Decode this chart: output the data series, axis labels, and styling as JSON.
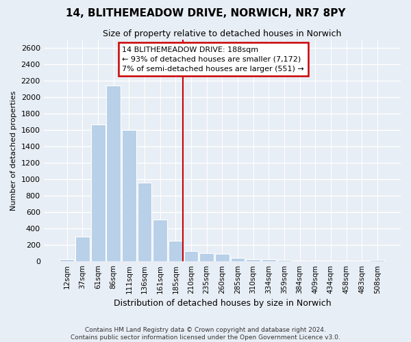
{
  "title": "14, BLITHEMEADOW DRIVE, NORWICH, NR7 8PY",
  "subtitle": "Size of property relative to detached houses in Norwich",
  "xlabel": "Distribution of detached houses by size in Norwich",
  "ylabel": "Number of detached properties",
  "footer1": "Contains HM Land Registry data © Crown copyright and database right 2024.",
  "footer2": "Contains public sector information licensed under the Open Government Licence v3.0.",
  "categories": [
    "12sqm",
    "37sqm",
    "61sqm",
    "86sqm",
    "111sqm",
    "136sqm",
    "161sqm",
    "185sqm",
    "210sqm",
    "235sqm",
    "260sqm",
    "285sqm",
    "310sqm",
    "334sqm",
    "359sqm",
    "384sqm",
    "409sqm",
    "434sqm",
    "458sqm",
    "483sqm",
    "508sqm"
  ],
  "values": [
    20,
    295,
    1670,
    2140,
    1600,
    960,
    510,
    250,
    120,
    100,
    90,
    40,
    20,
    20,
    15,
    5,
    8,
    5,
    3,
    2,
    12
  ],
  "bar_color": "#b8d0e8",
  "bar_edge_color": "#ffffff",
  "bg_color": "#e8eef5",
  "grid_color": "#ffffff",
  "vline_index": 7,
  "annotation_title": "14 BLITHEMEADOW DRIVE: 188sqm",
  "annotation_line1": "← 93% of detached houses are smaller (7,172)",
  "annotation_line2": "7% of semi-detached houses are larger (551) →",
  "annotation_box_color": "#ffffff",
  "annotation_border_color": "#cc0000",
  "vline_color": "#cc0000",
  "ylim": [
    0,
    2700
  ],
  "yticks": [
    0,
    200,
    400,
    600,
    800,
    1000,
    1200,
    1400,
    1600,
    1800,
    2000,
    2200,
    2400,
    2600
  ],
  "title_fontsize": 11,
  "subtitle_fontsize": 9,
  "ylabel_fontsize": 8,
  "xlabel_fontsize": 9,
  "tick_fontsize": 8,
  "xtick_fontsize": 7.5,
  "footer_fontsize": 6.5
}
